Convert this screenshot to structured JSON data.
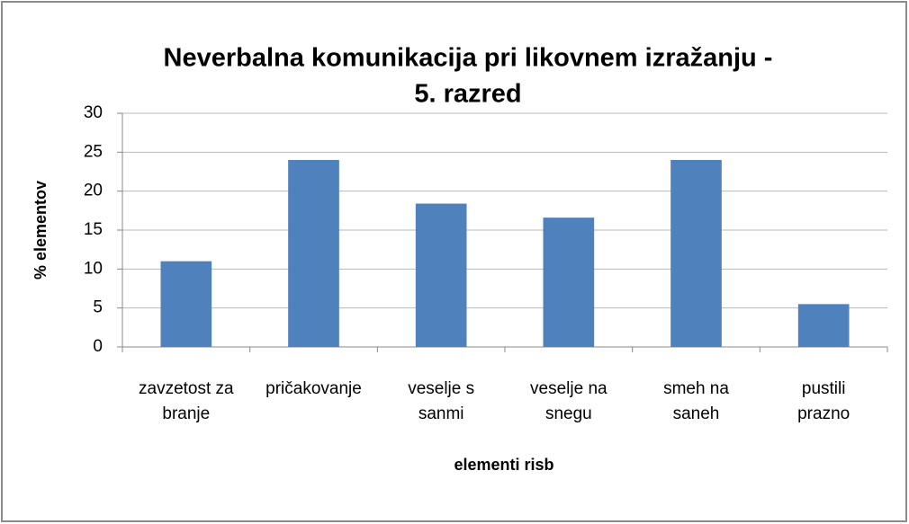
{
  "chart_data": {
    "type": "bar",
    "title": [
      "Neverbalna komunikacija pri likovnem izražanju -",
      "5. razred"
    ],
    "y_label": "% elementov",
    "x_label": "elementi risb",
    "categories": [
      [
        "zavzetost za",
        "branje"
      ],
      [
        "pričakovanje"
      ],
      [
        "veselje s",
        "sanmi"
      ],
      [
        "veselje na",
        "snegu"
      ],
      [
        "smeh na",
        "saneh"
      ],
      [
        "pustili",
        "prazno"
      ]
    ],
    "values": [
      11,
      24,
      18.4,
      16.6,
      24,
      5.5
    ],
    "color": "#4f81bd",
    "ylim": [
      0,
      30
    ],
    "yticks": [
      0,
      5,
      10,
      15,
      20,
      25,
      30
    ],
    "grid": true
  }
}
